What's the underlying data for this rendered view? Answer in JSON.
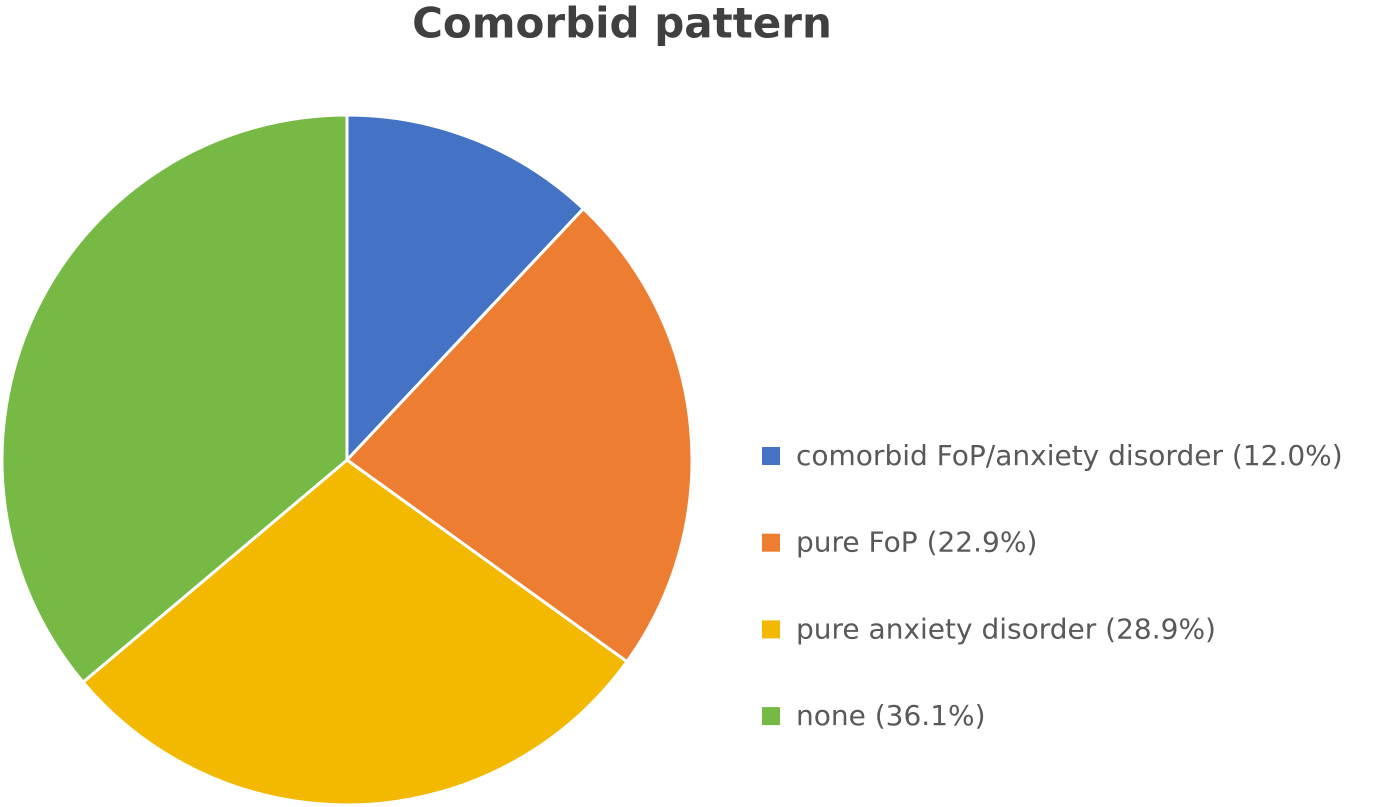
{
  "chart_data": {
    "type": "pie",
    "title": "Comorbid pattern",
    "categories": [
      "comorbid FoP/anxiety disorder (12.0%)",
      "pure FoP (22.9%)",
      "pure anxiety disorder (28.9%)",
      "none (36.1%)"
    ],
    "values": [
      12.0,
      22.9,
      28.9,
      36.1
    ],
    "colors": [
      "#4472c4",
      "#ed7d31",
      "#f2b900",
      "#76b944"
    ],
    "legend": "right"
  }
}
